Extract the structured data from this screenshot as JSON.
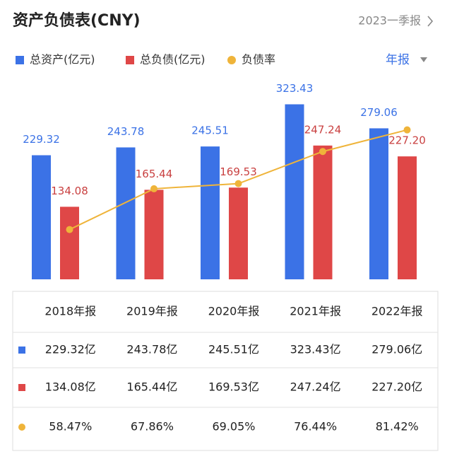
{
  "title": "资产负债表(CNY)",
  "period_link": "2023一季报",
  "period_select": "年报",
  "chart_data": {
    "type": "bar-line",
    "categories": [
      "2018年报",
      "2019年报",
      "2020年报",
      "2021年报",
      "2022年报"
    ],
    "series": [
      {
        "name": "总资产(亿元)",
        "color": "#3b72e6",
        "values": [
          229.32,
          243.78,
          245.51,
          323.43,
          279.06
        ],
        "value_labels": [
          "229.32",
          "243.78",
          "245.51",
          "323.43",
          "279.06"
        ]
      },
      {
        "name": "总负债(亿元)",
        "color": "#df4747",
        "values": [
          134.08,
          165.44,
          169.53,
          247.24,
          227.2
        ],
        "value_labels": [
          "134.08",
          "165.44",
          "169.53",
          "247.24",
          "227.20"
        ]
      },
      {
        "name": "负债率",
        "color": "#efb43a",
        "type": "line",
        "axis": "y2",
        "values": [
          58.47,
          67.86,
          69.05,
          76.44,
          81.42
        ]
      }
    ],
    "ylim": [
      0,
      345
    ],
    "y2lim": [
      47,
      90
    ]
  },
  "table": {
    "rows": [
      [
        "229.32亿",
        "243.78亿",
        "245.51亿",
        "323.43亿",
        "279.06亿"
      ],
      [
        "134.08亿",
        "165.44亿",
        "169.53亿",
        "247.24亿",
        "227.20亿"
      ],
      [
        "58.47%",
        "67.86%",
        "69.05%",
        "76.44%",
        "81.42%"
      ]
    ]
  }
}
